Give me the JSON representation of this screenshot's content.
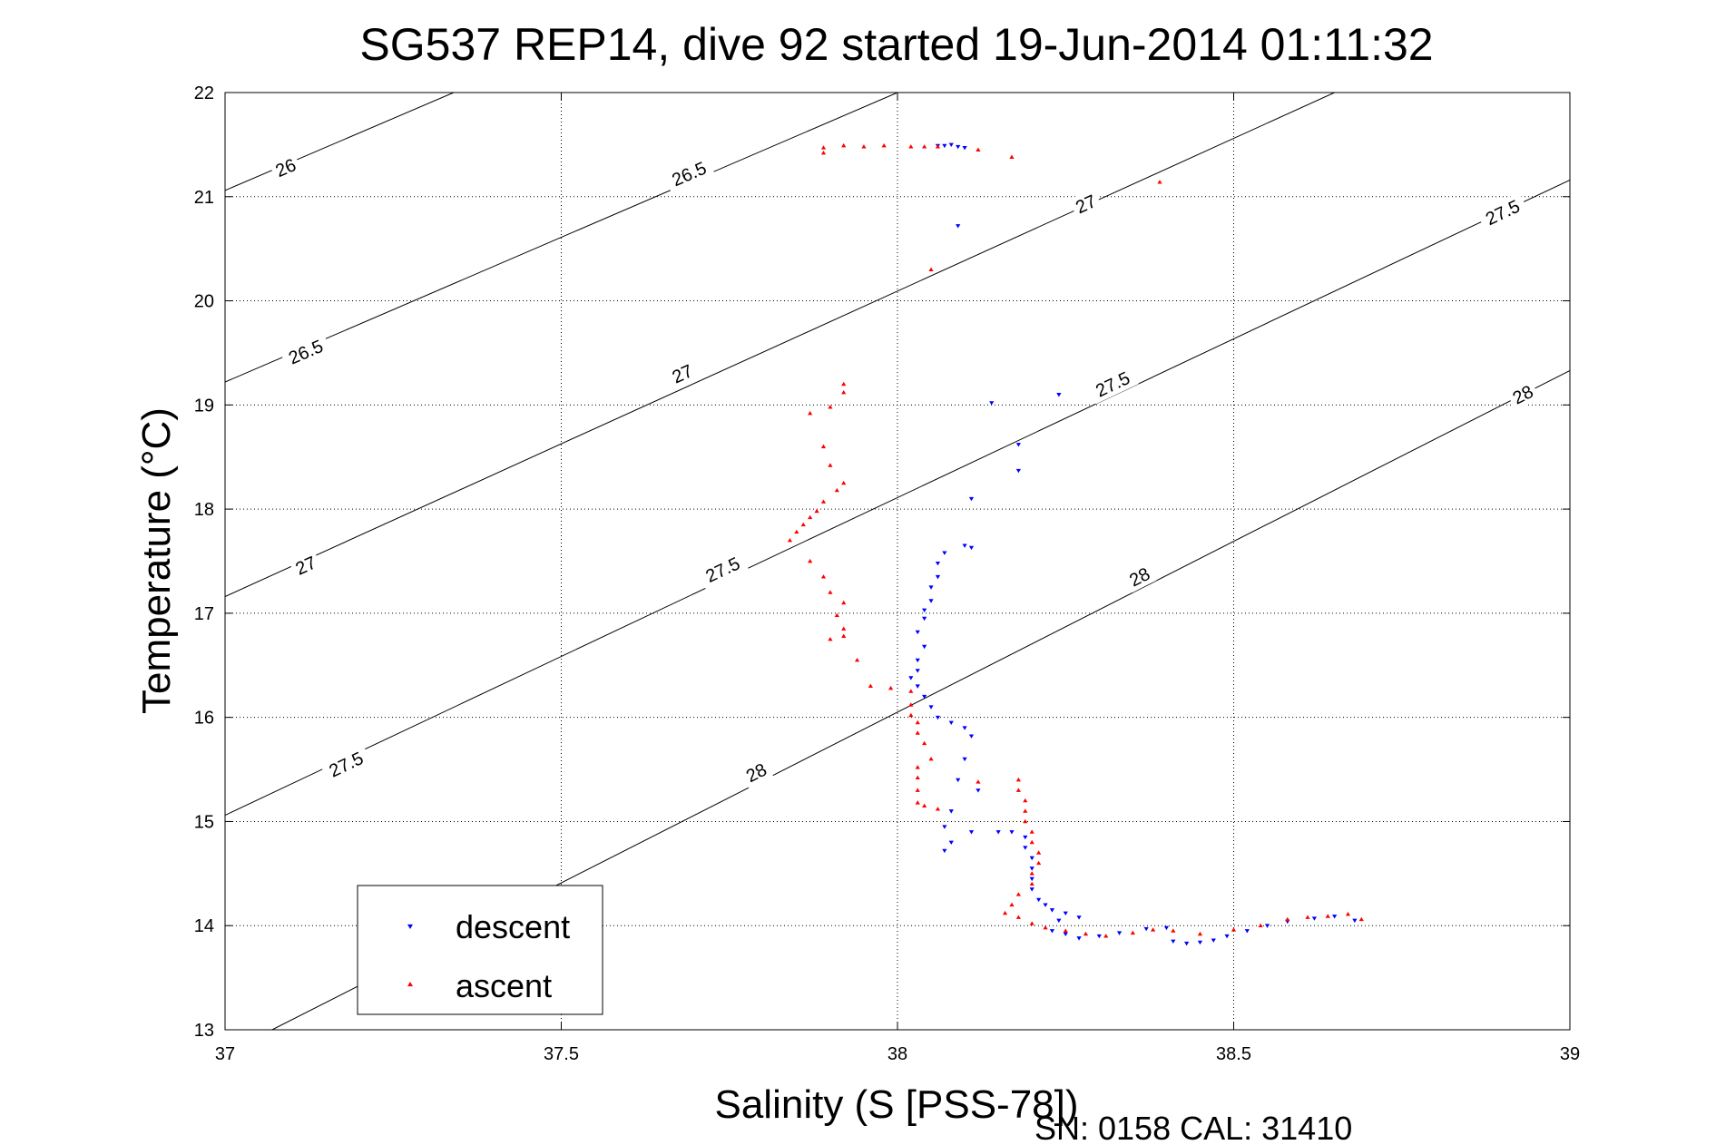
{
  "chart_data": {
    "type": "scatter",
    "title": "SG537 REP14, dive 92 started 19-Jun-2014 01:11:32",
    "xlabel": "Salinity (S [PSS-78])",
    "ylabel": "Temperature (°C)",
    "xlim": [
      37,
      39
    ],
    "ylim": [
      13,
      22
    ],
    "xticks": [
      37,
      37.5,
      38,
      38.5,
      39
    ],
    "xtick_labels": [
      "37",
      "37.5",
      "38",
      "38.5",
      "39"
    ],
    "yticks": [
      13,
      14,
      15,
      16,
      17,
      18,
      19,
      20,
      21,
      22
    ],
    "ytick_labels": [
      "13",
      "14",
      "15",
      "16",
      "17",
      "18",
      "19",
      "20",
      "21",
      "22"
    ],
    "grid": true,
    "legend_position": "bottom-left",
    "footer": "SN: 0158  CAL: 31410",
    "density_contours": [
      {
        "level": 26,
        "endpoints": [
          [
            37.0,
            21.06
          ],
          [
            37.34,
            22.0
          ]
        ],
        "labels": [
          {
            "x": 37.09,
            "y": 21.28,
            "text": "26"
          }
        ]
      },
      {
        "level": 26.5,
        "endpoints": [
          [
            37.0,
            19.22
          ],
          [
            38.0,
            22.0
          ]
        ],
        "labels": [
          {
            "x": 37.12,
            "y": 19.51,
            "text": "26.5"
          },
          {
            "x": 37.69,
            "y": 21.22,
            "text": "26.5"
          }
        ]
      },
      {
        "level": 27,
        "endpoints": [
          [
            37.0,
            17.16
          ],
          [
            38.65,
            22.0
          ]
        ],
        "labels": [
          {
            "x": 37.12,
            "y": 17.46,
            "text": "27"
          },
          {
            "x": 37.68,
            "y": 19.3,
            "text": "27"
          },
          {
            "x": 38.28,
            "y": 20.93,
            "text": "27"
          }
        ]
      },
      {
        "level": 27.5,
        "endpoints": [
          [
            37.0,
            15.06
          ],
          [
            39.0,
            21.16
          ]
        ],
        "labels": [
          {
            "x": 37.18,
            "y": 15.55,
            "text": "27.5"
          },
          {
            "x": 37.74,
            "y": 17.42,
            "text": "27.5"
          },
          {
            "x": 38.32,
            "y": 19.2,
            "text": "27.5"
          },
          {
            "x": 38.9,
            "y": 20.85,
            "text": "27.5"
          }
        ]
      },
      {
        "level": 28,
        "endpoints": [
          [
            37.07,
            13.0
          ],
          [
            39.0,
            19.33
          ]
        ],
        "labels": [
          {
            "x": 37.79,
            "y": 15.47,
            "text": "28"
          },
          {
            "x": 38.36,
            "y": 17.35,
            "text": "28"
          },
          {
            "x": 38.93,
            "y": 19.1,
            "text": "28"
          }
        ]
      }
    ],
    "series": [
      {
        "name": "descent",
        "color": "#0000ff",
        "marker": "triangle-down",
        "points": [
          [
            38.07,
            21.49
          ],
          [
            38.08,
            21.5
          ],
          [
            38.09,
            21.48
          ],
          [
            38.06,
            21.49
          ],
          [
            38.1,
            21.47
          ],
          [
            38.09,
            20.72
          ],
          [
            38.14,
            19.02
          ],
          [
            38.24,
            19.1
          ],
          [
            38.18,
            18.62
          ],
          [
            38.18,
            18.37
          ],
          [
            38.11,
            18.1
          ],
          [
            38.1,
            17.65
          ],
          [
            38.11,
            17.63
          ],
          [
            38.07,
            17.58
          ],
          [
            38.06,
            17.48
          ],
          [
            38.06,
            17.35
          ],
          [
            38.05,
            17.25
          ],
          [
            38.05,
            17.12
          ],
          [
            38.04,
            17.03
          ],
          [
            38.04,
            16.95
          ],
          [
            38.03,
            16.82
          ],
          [
            38.04,
            16.68
          ],
          [
            38.03,
            16.55
          ],
          [
            38.03,
            16.45
          ],
          [
            38.02,
            16.38
          ],
          [
            38.03,
            16.3
          ],
          [
            38.04,
            16.2
          ],
          [
            38.05,
            16.1
          ],
          [
            38.06,
            16.0
          ],
          [
            38.08,
            15.95
          ],
          [
            38.1,
            15.9
          ],
          [
            38.11,
            15.82
          ],
          [
            38.1,
            15.6
          ],
          [
            38.09,
            15.4
          ],
          [
            38.12,
            15.3
          ],
          [
            38.08,
            15.1
          ],
          [
            38.07,
            14.95
          ],
          [
            38.08,
            14.8
          ],
          [
            38.07,
            14.72
          ],
          [
            38.11,
            14.9
          ],
          [
            38.15,
            14.9
          ],
          [
            38.17,
            14.9
          ],
          [
            38.19,
            14.85
          ],
          [
            38.19,
            14.75
          ],
          [
            38.2,
            14.65
          ],
          [
            38.2,
            14.55
          ],
          [
            38.2,
            14.45
          ],
          [
            38.2,
            14.35
          ],
          [
            38.21,
            14.25
          ],
          [
            38.22,
            14.2
          ],
          [
            38.23,
            14.15
          ],
          [
            38.25,
            14.12
          ],
          [
            38.27,
            14.08
          ],
          [
            38.24,
            14.05
          ],
          [
            38.23,
            13.95
          ],
          [
            38.25,
            13.92
          ],
          [
            38.27,
            13.88
          ],
          [
            38.3,
            13.9
          ],
          [
            38.33,
            13.93
          ],
          [
            38.37,
            13.97
          ],
          [
            38.4,
            13.98
          ],
          [
            38.41,
            13.85
          ],
          [
            38.43,
            13.83
          ],
          [
            38.45,
            13.84
          ],
          [
            38.47,
            13.86
          ],
          [
            38.49,
            13.9
          ],
          [
            38.52,
            13.95
          ],
          [
            38.55,
            14.0
          ],
          [
            38.58,
            14.04
          ],
          [
            38.62,
            14.07
          ],
          [
            38.65,
            14.09
          ],
          [
            38.68,
            14.05
          ]
        ]
      },
      {
        "name": "ascent",
        "color": "#ff0000",
        "marker": "triangle-up",
        "points": [
          [
            37.89,
            21.47
          ],
          [
            37.89,
            21.42
          ],
          [
            37.92,
            21.49
          ],
          [
            37.95,
            21.48
          ],
          [
            37.98,
            21.49
          ],
          [
            38.02,
            21.48
          ],
          [
            38.04,
            21.48
          ],
          [
            38.06,
            21.48
          ],
          [
            38.12,
            21.45
          ],
          [
            38.17,
            21.38
          ],
          [
            38.39,
            21.14
          ],
          [
            38.05,
            20.3
          ],
          [
            37.92,
            19.2
          ],
          [
            37.92,
            19.12
          ],
          [
            37.9,
            18.98
          ],
          [
            37.87,
            18.92
          ],
          [
            37.89,
            18.6
          ],
          [
            37.9,
            18.42
          ],
          [
            37.92,
            18.25
          ],
          [
            37.91,
            18.18
          ],
          [
            37.89,
            18.07
          ],
          [
            37.88,
            17.98
          ],
          [
            37.87,
            17.92
          ],
          [
            37.86,
            17.85
          ],
          [
            37.85,
            17.78
          ],
          [
            37.84,
            17.7
          ],
          [
            37.87,
            17.5
          ],
          [
            37.89,
            17.35
          ],
          [
            37.9,
            17.2
          ],
          [
            37.92,
            17.1
          ],
          [
            37.91,
            16.98
          ],
          [
            37.92,
            16.85
          ],
          [
            37.92,
            16.78
          ],
          [
            37.9,
            16.75
          ],
          [
            37.94,
            16.55
          ],
          [
            37.96,
            16.3
          ],
          [
            37.99,
            16.28
          ],
          [
            38.02,
            16.25
          ],
          [
            38.02,
            16.12
          ],
          [
            38.02,
            16.02
          ],
          [
            38.03,
            15.95
          ],
          [
            38.03,
            15.85
          ],
          [
            38.04,
            15.75
          ],
          [
            38.05,
            15.6
          ],
          [
            38.03,
            15.52
          ],
          [
            38.03,
            15.42
          ],
          [
            38.03,
            15.3
          ],
          [
            38.03,
            15.18
          ],
          [
            38.04,
            15.15
          ],
          [
            38.06,
            15.12
          ],
          [
            38.12,
            15.38
          ],
          [
            38.18,
            15.4
          ],
          [
            38.18,
            15.3
          ],
          [
            38.19,
            15.2
          ],
          [
            38.19,
            15.1
          ],
          [
            38.19,
            15.0
          ],
          [
            38.2,
            14.9
          ],
          [
            38.2,
            14.8
          ],
          [
            38.21,
            14.7
          ],
          [
            38.21,
            14.6
          ],
          [
            38.2,
            14.5
          ],
          [
            38.2,
            14.4
          ],
          [
            38.18,
            14.3
          ],
          [
            38.17,
            14.2
          ],
          [
            38.16,
            14.12
          ],
          [
            38.18,
            14.08
          ],
          [
            38.2,
            14.02
          ],
          [
            38.22,
            13.98
          ],
          [
            38.25,
            13.95
          ],
          [
            38.28,
            13.92
          ],
          [
            38.31,
            13.9
          ],
          [
            38.35,
            13.93
          ],
          [
            38.38,
            13.96
          ],
          [
            38.41,
            13.95
          ],
          [
            38.45,
            13.92
          ],
          [
            38.5,
            13.96
          ],
          [
            38.54,
            14.0
          ],
          [
            38.58,
            14.06
          ],
          [
            38.61,
            14.08
          ],
          [
            38.64,
            14.09
          ],
          [
            38.67,
            14.11
          ],
          [
            38.69,
            14.06
          ]
        ]
      }
    ]
  }
}
